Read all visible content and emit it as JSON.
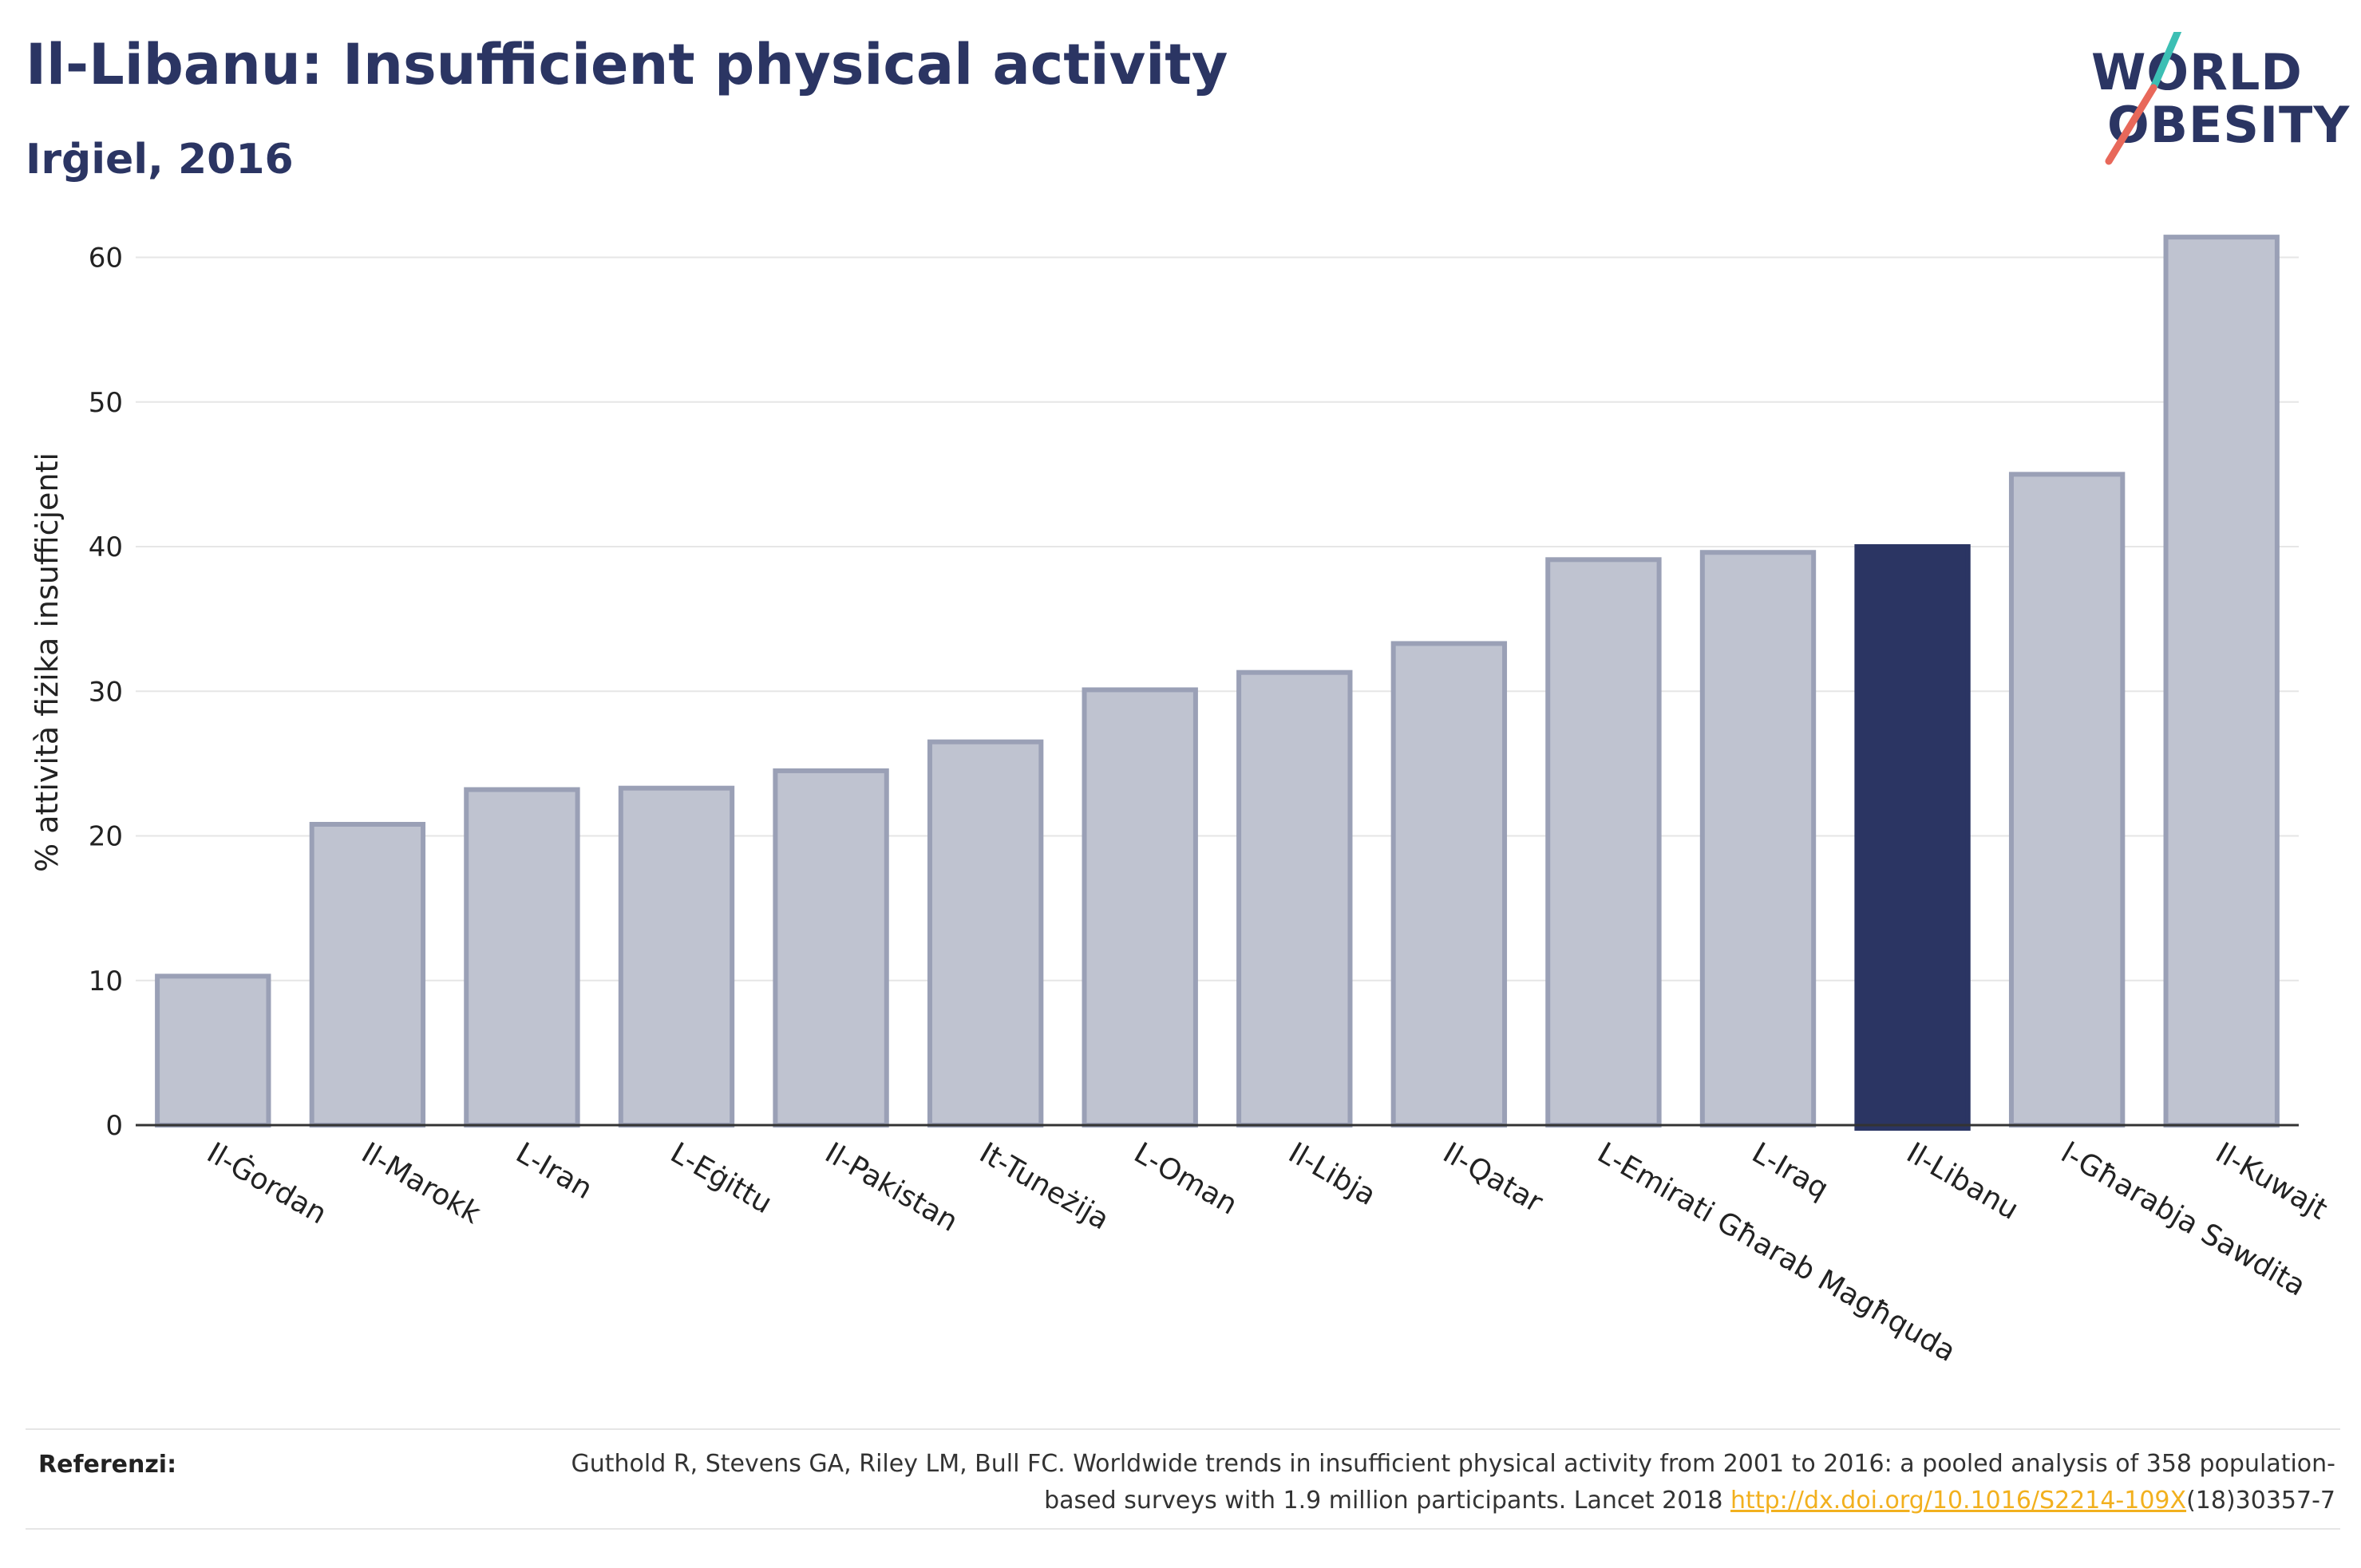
{
  "title": "Il-Libanu: Insufficient physical activity",
  "subtitle": "Irġiel, 2016",
  "logo": {
    "line1": "WORLD",
    "line2": "OBESITY"
  },
  "references": {
    "label": "Referenzi:",
    "text_before": "Guthold R, Stevens GA, Riley LM, Bull FC. Worldwide trends in insufficient physical activity from 2001 to 2016: a pooled analysis of 358 population-based surveys with 1.9 million participants. Lancet 2018 ",
    "link_text": "http://dx.doi.org/10.1016/S2214-109X",
    "text_after": "(18)30357-7"
  },
  "colors": {
    "bar": "#bfc3d0",
    "bar_border": "#9aa0b6",
    "highlight": "#2b3563",
    "grid": "#e6e6e6",
    "title": "#2b3563",
    "logo_teal": "#3cbfb4",
    "logo_red": "#e8685a"
  },
  "chart_data": {
    "type": "bar",
    "categories": [
      "Il-Ġordan",
      "Il-Marokk",
      "L-Iran",
      "L-Eġittu",
      "Il-Pakistan",
      "It-Tuneżija",
      "L-Oman",
      "Il-Libja",
      "Il-Qatar",
      "L-Emirati Għarab Magħquda",
      "L-Iraq",
      "Il-Libanu",
      "l-Għarabja Sawdita",
      "Il-Kuwajt"
    ],
    "values": [
      10.3,
      20.8,
      23.2,
      23.3,
      24.5,
      26.5,
      30.1,
      31.3,
      33.3,
      39.1,
      39.6,
      40.0,
      45.0,
      61.4
    ],
    "highlight_index": 11,
    "ylabel": "% attività fiżika insuffiċjenti",
    "yticks": [
      0,
      10,
      20,
      30,
      40,
      50,
      60
    ],
    "ylim": [
      0,
      64
    ],
    "grid": true,
    "legend": "none"
  }
}
